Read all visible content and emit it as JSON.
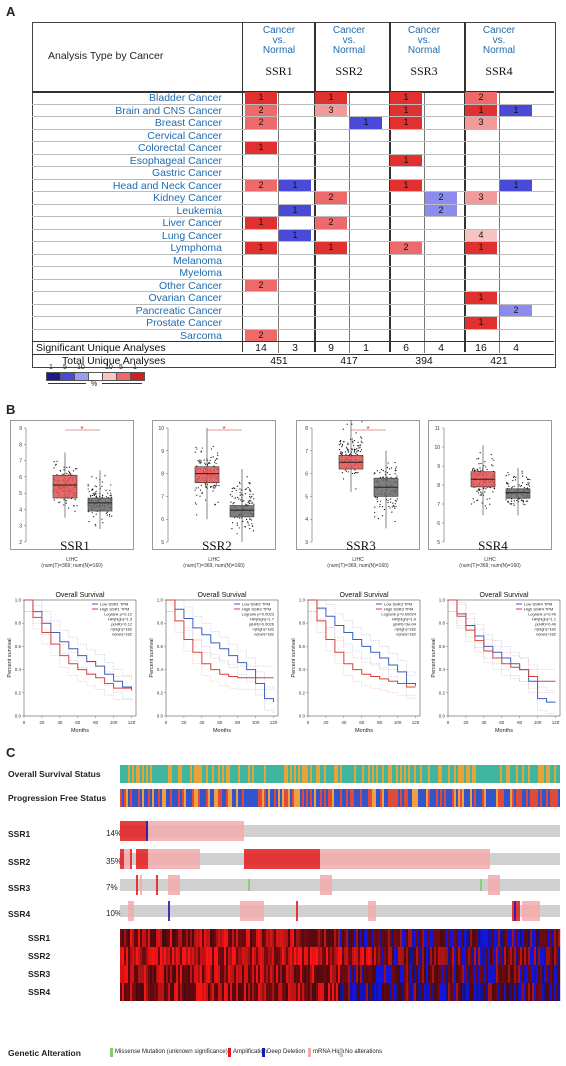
{
  "panels": {
    "a": "A",
    "b": "B",
    "c": "C"
  },
  "panelA": {
    "header_analysis": "Analysis Type by Cancer",
    "genes": [
      "SSR1",
      "SSR2",
      "SSR3",
      "SSR4"
    ],
    "cvn_line1": "Cancer",
    "cvn_line2": "vs.",
    "cvn_line3": "Normal",
    "cancers": [
      "Bladder Cancer",
      "Brain and CNS Cancer",
      "Breast Cancer",
      "Cervical Cancer",
      "Colorectal Cancer",
      "Esophageal Cancer",
      "Gastric Cancer",
      "Head and Neck Cancer",
      "Kidney Cancer",
      "Leukemia",
      "Liver Cancer",
      "Lung Cancer",
      "Lymphoma",
      "Melanoma",
      "Myeloma",
      "Other Cancer",
      "Ovarian Cancer",
      "Pancreatic Cancer",
      "Prostate Cancer",
      "Sarcoma"
    ],
    "cells": [
      [
        "1",
        "",
        "1",
        "",
        "1",
        "",
        "2",
        ""
      ],
      [
        "2",
        "",
        "3",
        "",
        "1",
        "",
        "1",
        "1"
      ],
      [
        "2",
        "",
        "",
        "1",
        "1",
        "",
        "3",
        ""
      ],
      [
        "",
        "",
        "",
        "",
        "",
        "",
        "",
        ""
      ],
      [
        "1",
        "",
        "",
        "",
        "",
        "",
        "",
        ""
      ],
      [
        "",
        "",
        "",
        "",
        "1",
        "",
        "",
        ""
      ],
      [
        "",
        "",
        "",
        "",
        "",
        "",
        "",
        ""
      ],
      [
        "2",
        "1",
        "",
        "",
        "1",
        "",
        "",
        "1"
      ],
      [
        "",
        "",
        "2",
        "",
        "",
        "2",
        "3",
        ""
      ],
      [
        "",
        "1",
        "",
        "",
        "",
        "2",
        "",
        ""
      ],
      [
        "1",
        "",
        "2",
        "",
        "",
        "",
        "",
        ""
      ],
      [
        "",
        "1",
        "",
        "",
        "",
        "",
        "4",
        ""
      ],
      [
        "1",
        "",
        "1",
        "",
        "2",
        "",
        "1",
        ""
      ],
      [
        "",
        "",
        "",
        "",
        "",
        "",
        "",
        ""
      ],
      [
        "",
        "",
        "",
        "",
        "",
        "",
        "",
        ""
      ],
      [
        "2",
        "",
        "",
        "",
        "",
        "",
        "",
        ""
      ],
      [
        "",
        "",
        "",
        "",
        "",
        "",
        "1",
        ""
      ],
      [
        "",
        "",
        "",
        "",
        "",
        "",
        "",
        "2"
      ],
      [
        "",
        "",
        "",
        "",
        "",
        "",
        "1",
        ""
      ],
      [
        "2",
        "",
        "",
        "",
        "",
        "",
        "",
        ""
      ]
    ],
    "sig_label": "Significant Unique Analyses",
    "sig_values": [
      "14",
      "3",
      "9",
      "1",
      "6",
      "4",
      "16",
      "4"
    ],
    "total_label": "Total Unique Analyses",
    "total_values": [
      "451",
      "417",
      "394",
      "421"
    ],
    "legend_nums": [
      "1",
      "5",
      "10",
      "10",
      "5",
      "1"
    ],
    "legend_pct": "%"
  },
  "panelB": {
    "box_genes": [
      "SSR1",
      "SSR2",
      "SSR3",
      "SSR4"
    ],
    "box_sub": "LIHC",
    "box_sub2": "(num(T)=369; num(N)=160)",
    "star": "*",
    "box_data": [
      {
        "t": [
          5.5,
          4.7,
          6.1,
          3.5,
          7.5
        ],
        "n": [
          4.4,
          3.9,
          4.7,
          2.8,
          6.4
        ],
        "ymin": 2,
        "ymax": 9,
        "ticks": [
          "2",
          "3",
          "4",
          "5",
          "6",
          "7",
          "8",
          "9"
        ],
        "sig": true
      },
      {
        "t": [
          8.0,
          7.6,
          8.3,
          6.0,
          10.0
        ],
        "n": [
          6.4,
          6.1,
          6.6,
          5.0,
          8.2
        ],
        "ymin": 5,
        "ymax": 10,
        "ticks": [
          "5",
          "6",
          "7",
          "8",
          "9",
          "10"
        ],
        "sig": true
      },
      {
        "t": [
          6.5,
          6.2,
          6.8,
          5.2,
          8.5
        ],
        "n": [
          5.4,
          5.0,
          5.8,
          3.6,
          7.0
        ],
        "ymin": 3,
        "ymax": 8,
        "ticks": [
          "3",
          "4",
          "5",
          "6",
          "7",
          "8"
        ],
        "sig": true
      },
      {
        "t": [
          8.3,
          7.9,
          8.7,
          6.4,
          10.1
        ],
        "n": [
          7.6,
          7.3,
          7.8,
          6.4,
          8.9
        ],
        "ymin": 5,
        "ymax": 11,
        "ticks": [
          "5",
          "6",
          "7",
          "8",
          "9",
          "10",
          "11"
        ],
        "sig": false
      }
    ],
    "km_title": "Overall Survival",
    "km_ylabel": "Percent survival",
    "km_xlabel": "Months",
    "km_xticks": [
      "0",
      "20",
      "40",
      "60",
      "80",
      "100",
      "120"
    ],
    "km_yticks": [
      "0.0",
      "0.2",
      "0.4",
      "0.6",
      "0.8",
      "1.0"
    ],
    "km_legends": [
      [
        "Low SSR1 TPM",
        "High SSR1 TPM",
        "Logrank p=0.12",
        "HR(high)=1.3",
        "p(HR)=0.12",
        "n(high)=182",
        "n(low)=182"
      ],
      [
        "Low SSR2 TPM",
        "High SSR2 TPM",
        "Logrank p=0.0023",
        "HR(high)=1.7",
        "p(HR)=0.0026",
        "n(high)=182",
        "n(low)=182"
      ],
      [
        "Low SSR3 TPM",
        "High SSR3 TPM",
        "Logrank p=0.00024",
        "HR(high)=1.9",
        "p(HR)=3e-04",
        "n(high)=182",
        "n(low)=182"
      ],
      [
        "Low SSR4 TPM",
        "High SSR4 TPM",
        "Logrank p=0.49",
        "HR(high)=1.1",
        "p(HR)=0.49",
        "n(high)=182",
        "n(low)=182"
      ]
    ]
  },
  "panelC": {
    "row_labels": [
      "Overall Survival Status",
      "Progression Free Status",
      "SSR1",
      "SSR2",
      "SSR3",
      "SSR4"
    ],
    "pcts": [
      "14%",
      "35%",
      "7%",
      "10%"
    ],
    "heat_labels": [
      "SSR1",
      "SSR2",
      "SSR3",
      "SSR4"
    ],
    "legend_title": "Genetic Alteration",
    "legend_items": [
      "Missense Mutation (unknown significance)",
      "Amplification",
      "Deep Deletion",
      "mRNA High",
      "No alterations"
    ],
    "colors": {
      "missense": "#7ccf6b",
      "amp": "#e31a1c",
      "del": "#1a1aa8",
      "mrna": "#f2a9a9",
      "none": "#c8c8c8"
    }
  }
}
